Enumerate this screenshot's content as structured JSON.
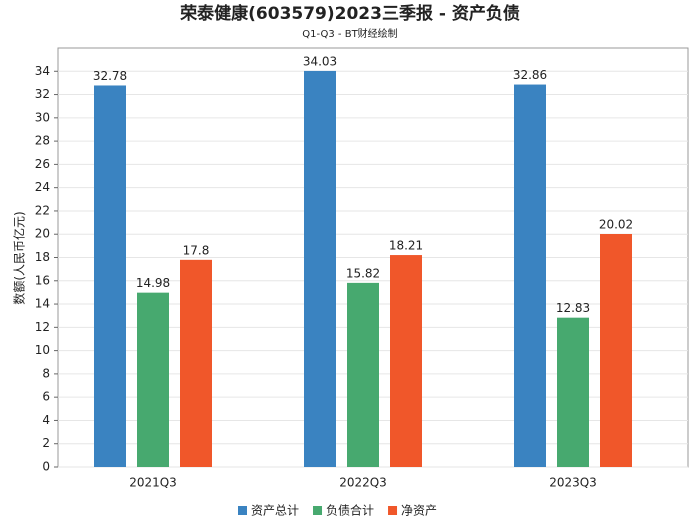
{
  "chart_data": {
    "type": "bar",
    "title": "荣泰健康(603579)2023三季报 - 资产负债",
    "subtitle": "Q1-Q3 - BT财经绘制",
    "y_label": "数额(人民币亿元)",
    "categories": [
      "2021Q3",
      "2022Q3",
      "2023Q3"
    ],
    "series": [
      {
        "name": "资产总计",
        "color": "#3a83c1",
        "values": [
          32.78,
          34.03,
          32.86
        ]
      },
      {
        "name": "负债合计",
        "color": "#47a96f",
        "values": [
          14.98,
          15.82,
          12.83
        ]
      },
      {
        "name": "净资产",
        "color": "#f0572a",
        "values": [
          17.8,
          18.21,
          20.02
        ]
      }
    ],
    "ylim": [
      0,
      36
    ],
    "yticks": [
      0,
      2,
      4,
      6,
      8,
      10,
      12,
      14,
      16,
      18,
      20,
      22,
      24,
      26,
      28,
      30,
      32,
      34
    ],
    "grid": true,
    "legend": "bottom"
  }
}
